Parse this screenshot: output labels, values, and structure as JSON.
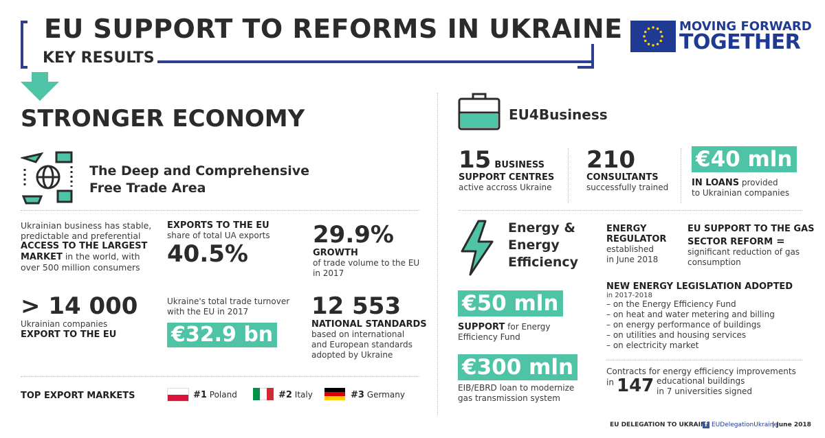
{
  "header": {
    "title": "EU SUPPORT TO REFORMS IN UKRAINE",
    "subtitle": "KEY RESULTS",
    "logo_line1": "MOVING FORWARD",
    "logo_line2": "TOGETHER"
  },
  "section": {
    "title": "STRONGER ECONOMY"
  },
  "dcfta": {
    "title_line1": "The Deep and Comprehensive",
    "title_line2": "Free Trade Area",
    "access_line1": "Ukrainian business has stable,",
    "access_line2": "predictable and preferential",
    "access_bold1": "ACCESS TO THE LARGEST",
    "access_bold2": "MARKET",
    "access_line3": " in the world, with",
    "access_line4": "over 500 million consumers",
    "exports_label": "EXPORTS TO THE EU",
    "exports_sub": "share of total UA exports",
    "exports_value": "40.5%",
    "growth_value": "29.9%",
    "growth_label": "GROWTH",
    "growth_sub1": "of trade volume to the EU",
    "growth_sub2": "in 2017",
    "companies_value": "> 14 000",
    "companies_sub": "Ukrainian companies",
    "companies_bold": "EXPORT TO THE EU",
    "turnover_line1": "Ukraine's total trade turnover",
    "turnover_line2": "with the EU in 2017",
    "turnover_value": "€32.9 bn",
    "standards_value": "12 553",
    "standards_label": "NATIONAL STANDARDS",
    "standards_sub1": "based on international",
    "standards_sub2": "and European standards",
    "standards_sub3": "adopted by Ukraine",
    "top_markets_label": "TOP EXPORT MARKETS",
    "markets": [
      {
        "rank": "#1",
        "country": "Poland"
      },
      {
        "rank": "#2",
        "country": "Italy"
      },
      {
        "rank": "#3",
        "country": "Germany"
      }
    ]
  },
  "eu4business": {
    "title": "EU4Business",
    "centres_value": "15",
    "centres_label1": "BUSINESS",
    "centres_label2": "SUPPORT CENTRES",
    "centres_sub": "active accross Ukraine",
    "consultants_value": "210",
    "consultants_label": "CONSULTANTS",
    "consultants_sub": "successfully trained",
    "loans_value": "€40 mln",
    "loans_label": "IN LOANS",
    "loans_sub1": " provided",
    "loans_sub2": "to Ukrainian companies"
  },
  "energy": {
    "title_line1": "Energy &",
    "title_line2": "Energy",
    "title_line3": "Efficiency",
    "regulator_label1": "ENERGY",
    "regulator_label2": "REGULATOR",
    "regulator_sub1": "established",
    "regulator_sub2": "in June 2018",
    "gas_label1": "EU SUPPORT TO THE GAS",
    "gas_label2": "SECTOR REFORM",
    "gas_eq": "=",
    "gas_sub1": "significant reduction of gas",
    "gas_sub2": "consumption",
    "support_value": "€50 mln",
    "support_label": "SUPPORT",
    "support_sub1": " for Energy",
    "support_sub2": "Efficiency Fund",
    "legislation_title": "NEW ENERGY LEGISLATION ADOPTED",
    "legislation_years": "in 2017-2018",
    "legislation_items": [
      "– on the Energy Efficiency Fund",
      "– on heat and water metering and billing",
      "– on energy performance of buildings",
      "– on utilities and housing services",
      "– on electricity market"
    ],
    "loan_value": "€300 mln",
    "loan_sub1": "EIB/EBRD loan to modernize",
    "loan_sub2": "gas transmission system",
    "contracts_line1": "Contracts for energy efficiency improvements",
    "contracts_in": "in",
    "contracts_value": "147",
    "contracts_line2": "educational buildings",
    "contracts_line3": "in 7 universities signed"
  },
  "footer": {
    "delegation": "EU DELEGATION TO UKRAINE",
    "facebook": "EUDelegationUkraine",
    "date": "| June 2018"
  },
  "colors": {
    "accent": "#4fc3a6",
    "navy": "#2f3f8f",
    "text": "#2b2b2b"
  }
}
